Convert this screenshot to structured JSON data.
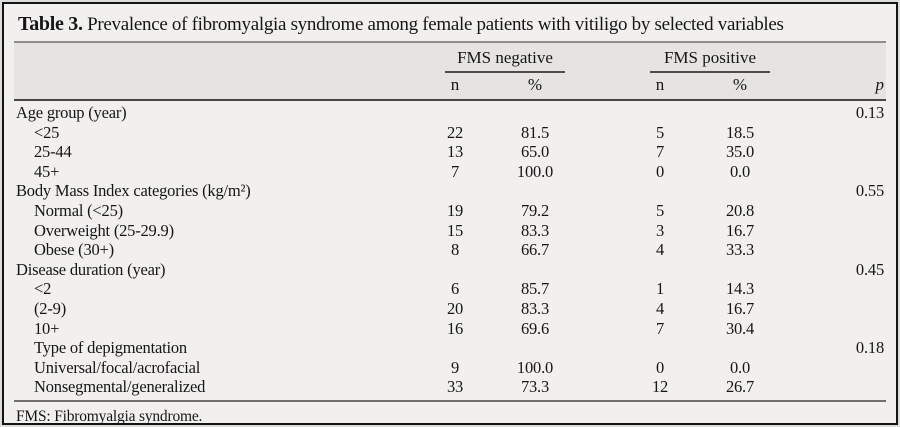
{
  "title": {
    "label": "Table 3.",
    "text": "Prevalence of fibromyalgia syndrome among female patients with vitiligo by selected variables"
  },
  "table": {
    "column_groups": [
      {
        "label": "FMS negative",
        "columns": [
          "n",
          "%"
        ]
      },
      {
        "label": "FMS positive",
        "columns": [
          "n",
          "%"
        ]
      }
    ],
    "p_header": "p",
    "rows": [
      {
        "label": "Age group (year)",
        "indent": false,
        "n_neg": "",
        "pct_neg": "",
        "n_pos": "",
        "pct_pos": "",
        "p": "0.13"
      },
      {
        "label": "<25",
        "indent": true,
        "n_neg": "22",
        "pct_neg": "81.5",
        "n_pos": "5",
        "pct_pos": "18.5",
        "p": ""
      },
      {
        "label": "25-44",
        "indent": true,
        "n_neg": "13",
        "pct_neg": "65.0",
        "n_pos": "7",
        "pct_pos": "35.0",
        "p": ""
      },
      {
        "label": "45+",
        "indent": true,
        "n_neg": "7",
        "pct_neg": "100.0",
        "n_pos": "0",
        "pct_pos": "0.0",
        "p": ""
      },
      {
        "label": "Body Mass Index categories (kg/m²)",
        "indent": false,
        "n_neg": "",
        "pct_neg": "",
        "n_pos": "",
        "pct_pos": "",
        "p": "0.55"
      },
      {
        "label": "Normal (<25)",
        "indent": true,
        "n_neg": "19",
        "pct_neg": "79.2",
        "n_pos": "5",
        "pct_pos": "20.8",
        "p": ""
      },
      {
        "label": "Overweight (25-29.9)",
        "indent": true,
        "n_neg": "15",
        "pct_neg": "83.3",
        "n_pos": "3",
        "pct_pos": "16.7",
        "p": ""
      },
      {
        "label": "Obese (30+)",
        "indent": true,
        "n_neg": "8",
        "pct_neg": "66.7",
        "n_pos": "4",
        "pct_pos": "33.3",
        "p": ""
      },
      {
        "label": "Disease duration (year)",
        "indent": false,
        "n_neg": "",
        "pct_neg": "",
        "n_pos": "",
        "pct_pos": "",
        "p": "0.45"
      },
      {
        "label": "<2",
        "indent": true,
        "n_neg": "6",
        "pct_neg": "85.7",
        "n_pos": "1",
        "pct_pos": "14.3",
        "p": ""
      },
      {
        "label": "(2-9)",
        "indent": true,
        "n_neg": "20",
        "pct_neg": "83.3",
        "n_pos": "4",
        "pct_pos": "16.7",
        "p": ""
      },
      {
        "label": "10+",
        "indent": true,
        "n_neg": "16",
        "pct_neg": "69.6",
        "n_pos": "7",
        "pct_pos": "30.4",
        "p": ""
      },
      {
        "label": "Type of depigmentation",
        "indent": true,
        "n_neg": "",
        "pct_neg": "",
        "n_pos": "",
        "pct_pos": "",
        "p": "0.18"
      },
      {
        "label": "Universal/focal/acrofacial",
        "indent": true,
        "n_neg": "9",
        "pct_neg": "100.0",
        "n_pos": "0",
        "pct_pos": "0.0",
        "p": ""
      },
      {
        "label": "Nonsegmental/generalized",
        "indent": true,
        "n_neg": "33",
        "pct_neg": "73.3",
        "n_pos": "12",
        "pct_pos": "26.7",
        "p": ""
      }
    ]
  },
  "footnote": "FMS: Fibromyalgia syndrome.",
  "colors": {
    "frame_border": "#141414",
    "body_bg": "#f1f0ee",
    "header_band_bg": "#e5e4e1",
    "rule_gray": "#8e8e8c",
    "rule_dark": "#454545"
  }
}
